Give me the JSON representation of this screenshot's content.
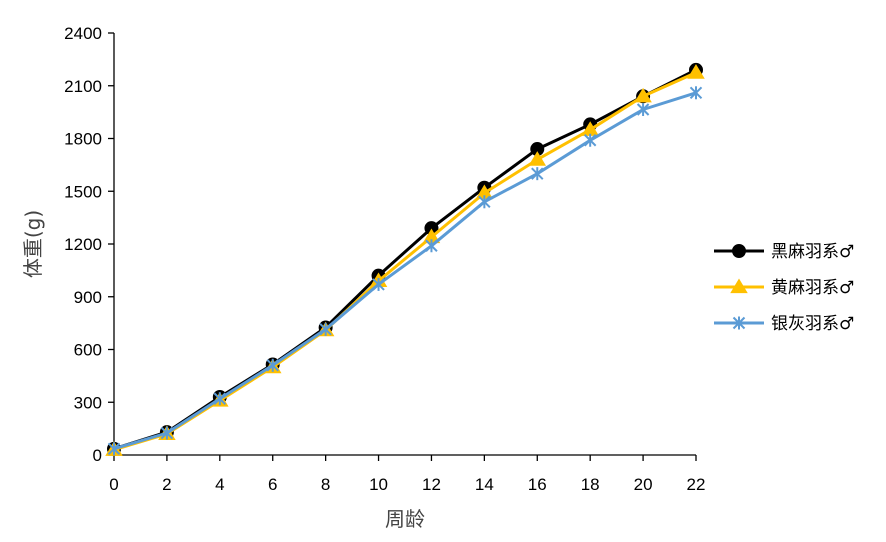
{
  "chart_data": {
    "type": "line",
    "xlabel": "周龄",
    "ylabel": "体重(g)",
    "title": "",
    "x": [
      0,
      2,
      4,
      6,
      8,
      10,
      12,
      14,
      16,
      18,
      20,
      22
    ],
    "xlim": [
      0,
      22
    ],
    "ylim": [
      0,
      2400
    ],
    "yticks": [
      0,
      300,
      600,
      900,
      1200,
      1500,
      1800,
      2100,
      2400
    ],
    "grid": false,
    "legend_position": "right",
    "series": [
      {
        "name": "黑麻羽系♂",
        "color": "#000000",
        "marker": "circle",
        "values": [
          35,
          130,
          330,
          515,
          725,
          1020,
          1290,
          1520,
          1740,
          1880,
          2040,
          2190
        ]
      },
      {
        "name": "黄麻羽系♂",
        "color": "#FFC000",
        "marker": "triangle",
        "values": [
          30,
          120,
          310,
          500,
          710,
          990,
          1240,
          1490,
          1680,
          1850,
          2040,
          2175
        ]
      },
      {
        "name": "银灰羽系♂",
        "color": "#5B9BD5",
        "marker": "star",
        "values": [
          35,
          125,
          320,
          510,
          715,
          970,
          1190,
          1440,
          1600,
          1790,
          1965,
          2060
        ]
      }
    ]
  }
}
